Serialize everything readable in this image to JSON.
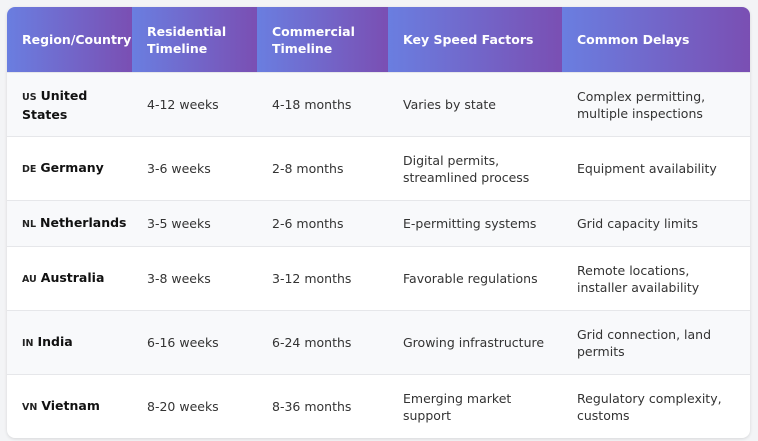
{
  "table": {
    "header": [
      "Region/Country",
      "Residential Timeline",
      "Commercial Timeline",
      "Key Speed Factors",
      "Common Delays"
    ],
    "rows": [
      {
        "code": "US",
        "country": "United States",
        "cells": [
          "4-12 weeks",
          "4-18 months",
          "Varies by state",
          "Complex permitting, multiple inspections"
        ]
      },
      {
        "code": "DE",
        "country": "Germany",
        "cells": [
          "3-6 weeks",
          "2-8 months",
          "Digital permits, streamlined process",
          "Equipment availability"
        ]
      },
      {
        "code": "NL",
        "country": "Netherlands",
        "cells": [
          "3-5 weeks",
          "2-6 months",
          "E-permitting systems",
          "Grid capacity limits"
        ]
      },
      {
        "code": "AU",
        "country": "Australia",
        "cells": [
          "3-8 weeks",
          "3-12 months",
          "Favorable regulations",
          "Remote locations, installer availability"
        ]
      },
      {
        "code": "IN",
        "country": "India",
        "cells": [
          "6-16 weeks",
          "6-24 months",
          "Growing infrastructure",
          "Grid connection, land permits"
        ]
      },
      {
        "code": "VN",
        "country": "Vietnam",
        "cells": [
          "8-20 weeks",
          "8-36 months",
          "Emerging market support",
          "Regulatory complexity, customs"
        ]
      }
    ]
  }
}
